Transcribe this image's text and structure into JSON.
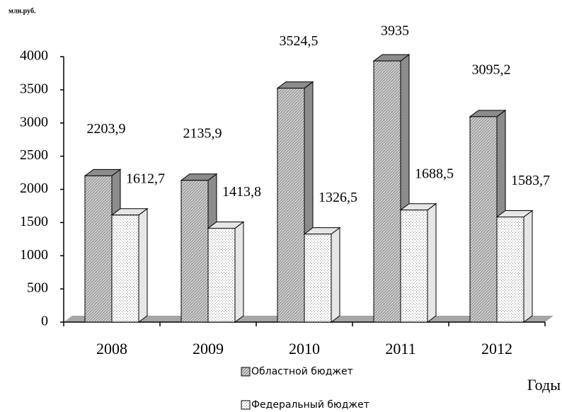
{
  "chart_data": {
    "type": "bar3d",
    "unit_label": "млн.руб.",
    "x_label": "Годы",
    "categories": [
      "2008",
      "2009",
      "2010",
      "2011",
      "2012"
    ],
    "series": [
      {
        "name": "Областной бюджет",
        "color": "#8c8c8c",
        "values": [
          2203.9,
          2135.9,
          3524.5,
          3935,
          3095.2
        ],
        "value_labels": [
          "2203,9",
          "2135,9",
          "3524,5",
          "3935",
          "3095,2"
        ]
      },
      {
        "name": "Федеральный бюджет",
        "color": "#e6e6e6",
        "values": [
          1612.7,
          1413.8,
          1326.5,
          1688.5,
          1583.7
        ],
        "value_labels": [
          "1612,7",
          "1413,8",
          "1326,5",
          "1688,5",
          "1583,7"
        ]
      }
    ],
    "ylim": [
      0,
      4000
    ],
    "yticks": [
      0,
      500,
      1000,
      1500,
      2000,
      2500,
      3000,
      3500,
      4000
    ]
  }
}
